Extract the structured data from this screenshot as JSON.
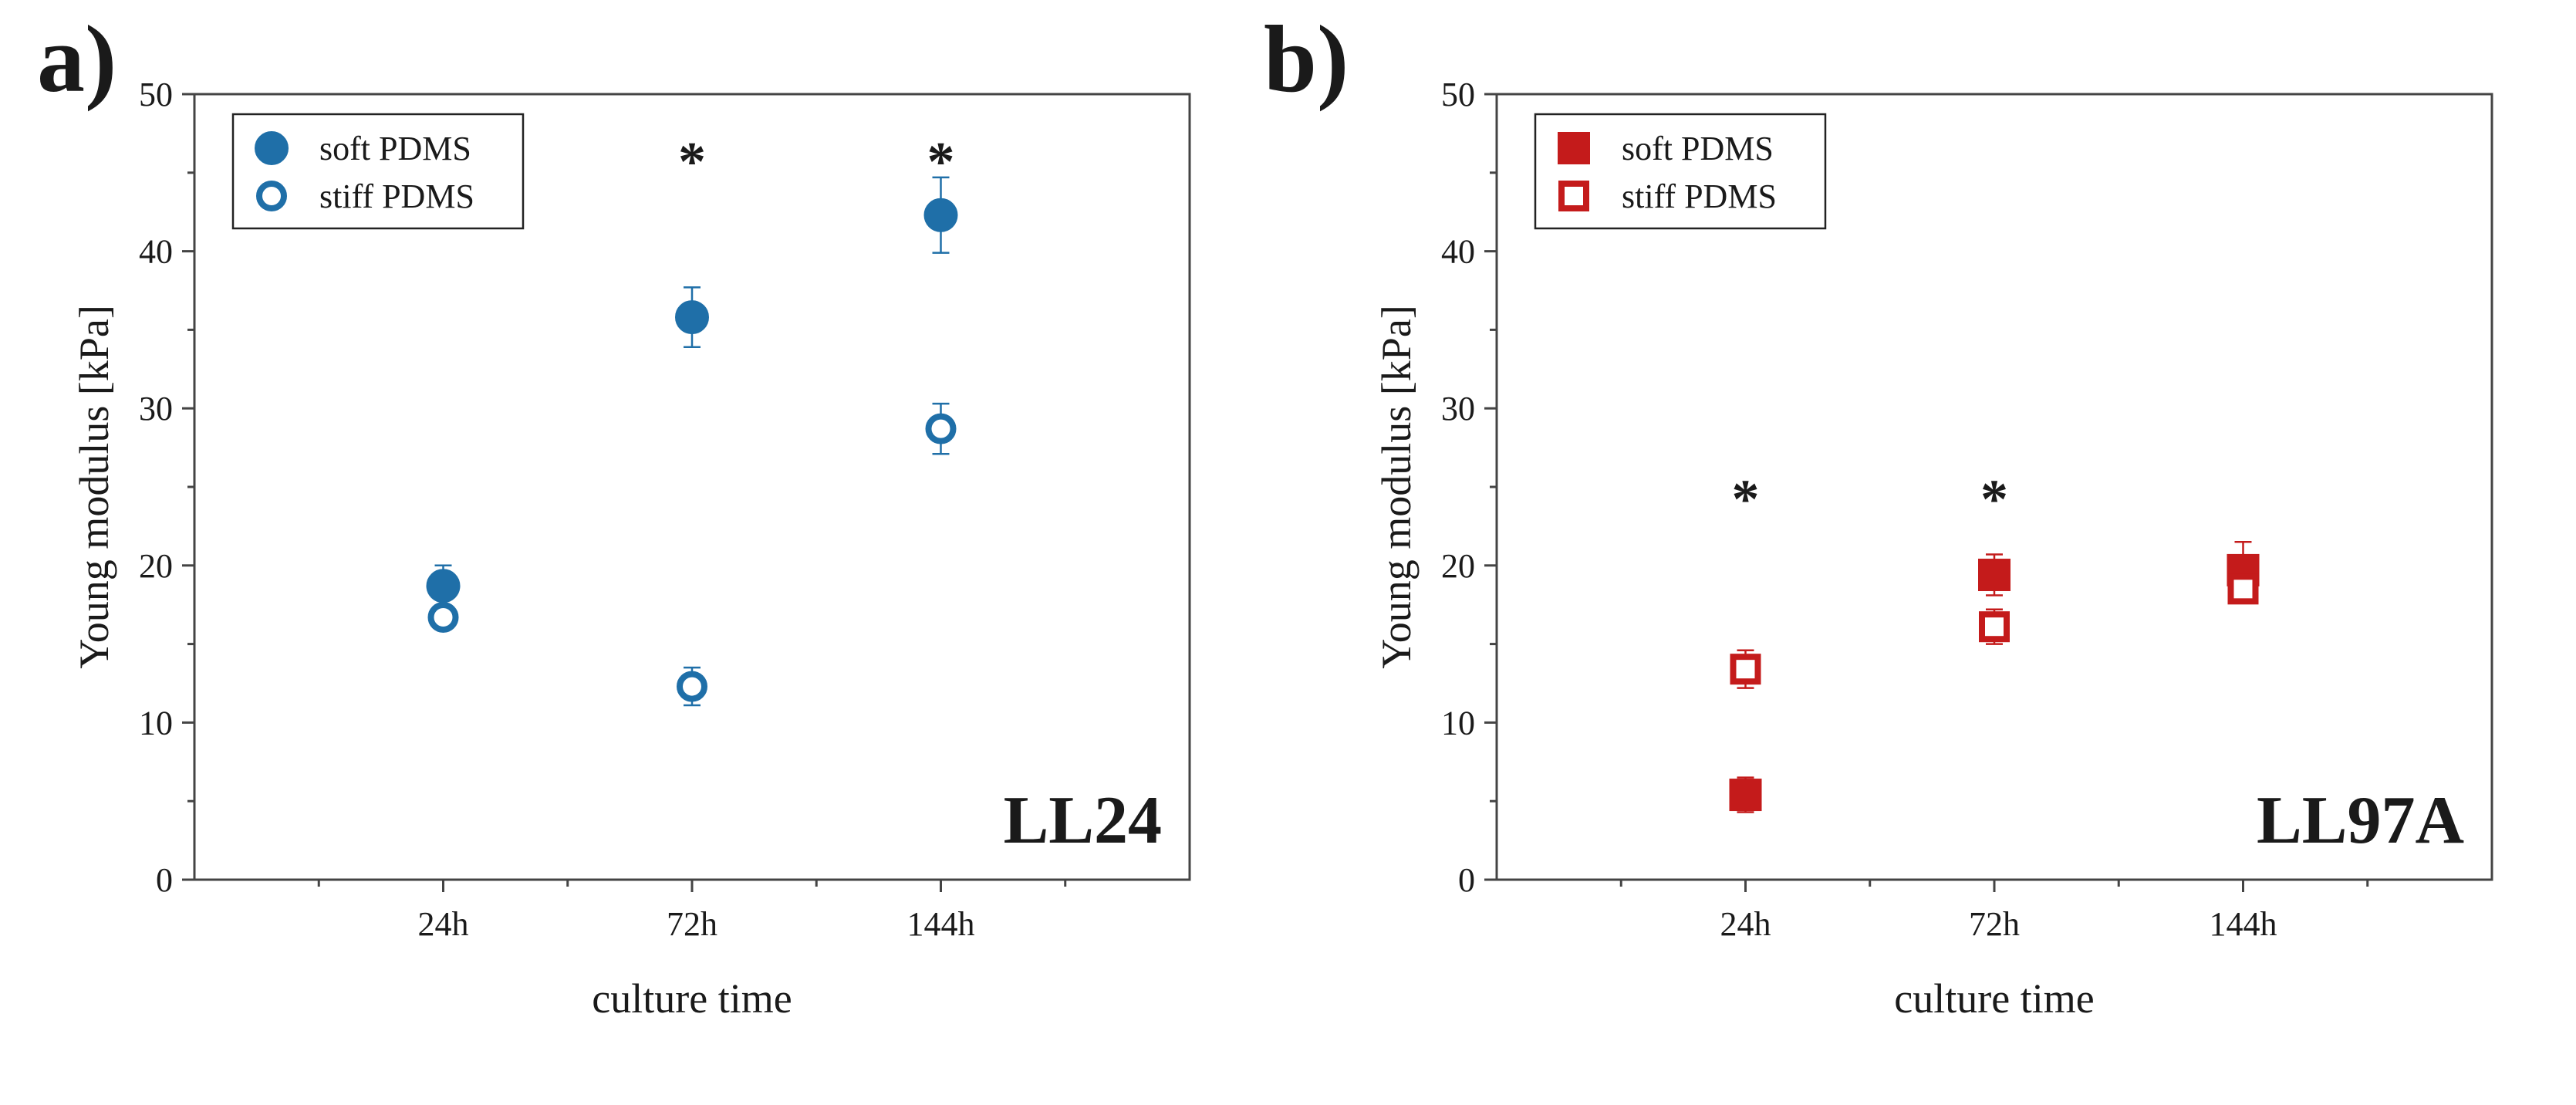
{
  "chart_data": [
    {
      "type": "scatter",
      "panel_label": "a)",
      "cell_line": "LL24",
      "xlabel": "culture time",
      "ylabel": "Young modulus [kPa]",
      "categories": [
        "24h",
        "72h",
        "144h"
      ],
      "ylim": [
        0,
        50
      ],
      "yticks": [
        "0",
        "10",
        "20",
        "30",
        "40",
        "50"
      ],
      "legend_position": "top-left",
      "marker": "circle",
      "color": "#1f6fa8",
      "series": [
        {
          "name": "soft PDMS",
          "filled": true,
          "values": [
            18.7,
            35.8,
            42.3
          ],
          "errors": [
            1.3,
            1.9,
            2.4
          ]
        },
        {
          "name": "stiff PDMS",
          "filled": false,
          "values": [
            16.7,
            12.3,
            28.7
          ],
          "errors": [
            0.6,
            1.2,
            1.6
          ]
        }
      ],
      "annotations": [
        {
          "text": "*",
          "category_index": 1,
          "y": 46
        },
        {
          "text": "*",
          "category_index": 2,
          "y": 46
        }
      ]
    },
    {
      "type": "scatter",
      "panel_label": "b)",
      "cell_line": "LL97A",
      "xlabel": "culture time",
      "ylabel": "Young modulus [kPa]",
      "categories": [
        "24h",
        "72h",
        "144h"
      ],
      "ylim": [
        0,
        50
      ],
      "yticks": [
        "0",
        "10",
        "20",
        "30",
        "40",
        "50"
      ],
      "legend_position": "top-left",
      "marker": "square",
      "color": "#c41b1b",
      "series": [
        {
          "name": "soft PDMS",
          "filled": true,
          "values": [
            5.4,
            19.4,
            19.7
          ],
          "errors": [
            1.1,
            1.3,
            1.8
          ]
        },
        {
          "name": "stiff PDMS",
          "filled": false,
          "values": [
            13.4,
            16.1,
            18.5
          ],
          "errors": [
            1.2,
            1.1,
            0.9
          ]
        }
      ],
      "annotations": [
        {
          "text": "*",
          "category_index": 0,
          "y": 24.5
        },
        {
          "text": "*",
          "category_index": 1,
          "y": 24.5
        }
      ]
    }
  ]
}
